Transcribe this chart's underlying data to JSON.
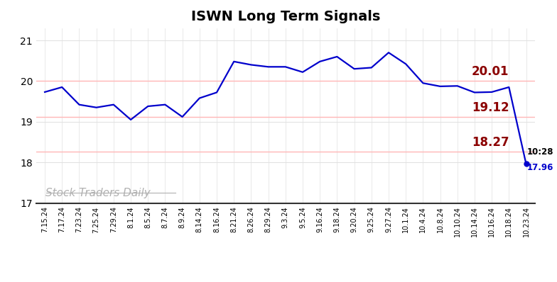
{
  "title": "ISWN Long Term Signals",
  "title_fontsize": 14,
  "title_fontweight": "bold",
  "watermark": "Stock Traders Daily",
  "x_labels": [
    "7.15.24",
    "7.17.24",
    "7.23.24",
    "7.25.24",
    "7.29.24",
    "8.1.24",
    "8.5.24",
    "8.7.24",
    "8.9.24",
    "8.14.24",
    "8.16.24",
    "8.21.24",
    "8.26.24",
    "8.29.24",
    "9.3.24",
    "9.5.24",
    "9.16.24",
    "9.18.24",
    "9.20.24",
    "9.25.24",
    "9.27.24",
    "10.1.24",
    "10.4.24",
    "10.8.24",
    "10.10.24",
    "10.14.24",
    "10.16.24",
    "10.18.24",
    "10.23.24"
  ],
  "y_values": [
    19.73,
    19.85,
    19.42,
    19.35,
    19.42,
    19.05,
    19.38,
    19.42,
    19.12,
    19.58,
    19.72,
    20.48,
    20.4,
    20.35,
    20.35,
    20.22,
    20.48,
    20.6,
    20.3,
    20.33,
    20.7,
    20.42,
    19.95,
    19.87,
    19.88,
    19.72,
    19.73,
    19.85,
    17.96
  ],
  "line_color": "#0000cc",
  "line_width": 1.6,
  "marker_color": "#0000cc",
  "marker_size": 6,
  "hlines": [
    {
      "y": 20.01,
      "label": "20.01",
      "color": "#8b0000"
    },
    {
      "y": 19.12,
      "label": "19.12",
      "color": "#8b0000"
    },
    {
      "y": 18.27,
      "label": "18.27",
      "color": "#8b0000"
    }
  ],
  "hline_color": "#ffb6b6",
  "hline_linewidth": 1.0,
  "annotation_time": "10:28",
  "annotation_price": "17.96",
  "annotation_price_color": "#0000cc",
  "annotation_time_color": "#000000",
  "ylim": [
    17.0,
    21.3
  ],
  "yticks": [
    17,
    18,
    19,
    20,
    21
  ],
  "grid_color": "#e0e0e0",
  "bg_color": "#ffffff",
  "watermark_color": "#b0b0b0",
  "watermark_fontsize": 11,
  "label_fontsize": 12
}
